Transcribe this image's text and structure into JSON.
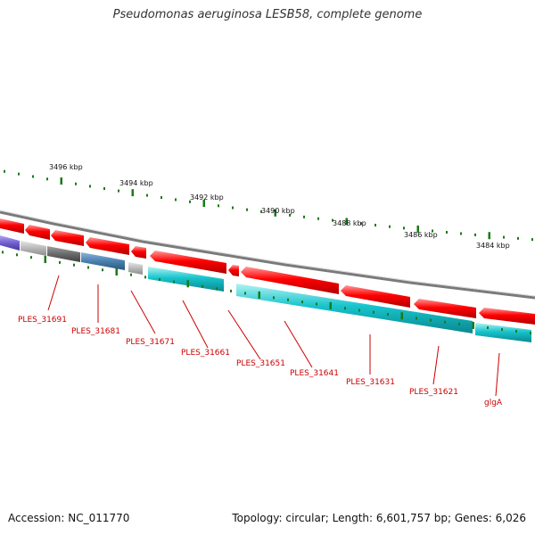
{
  "title": "Pseudomonas aeruginosa LESB58, complete genome",
  "footer": {
    "accession": "Accession: NC_011770",
    "summary": "Topology: circular; Length: 6,601,757 bp; Genes: 6,026"
  },
  "scale": {
    "unit": "kbp",
    "tick_labels": [
      "3496 kbp",
      "3494 kbp",
      "3492 kbp",
      "3490 kbp",
      "3488 kbp",
      "3486 kbp",
      "3484 kbp"
    ]
  },
  "gene_labels": [
    "PLES_31691",
    "PLES_31681",
    "PLES_31671",
    "PLES_31661",
    "PLES_31651",
    "PLES_31641",
    "PLES_31631",
    "PLES_31621",
    "glgA"
  ],
  "colors": {
    "forward_gene": "#ff0000",
    "reverse_gene": "#00b4c0",
    "backbone": "#808080",
    "tick": "#1a7a1a",
    "label": "#cc0000",
    "rna": "#7060d0",
    "pseudo_gray": "#b4b4b4",
    "dark_gray": "#707070",
    "blue_gene": "#4a80b0"
  }
}
